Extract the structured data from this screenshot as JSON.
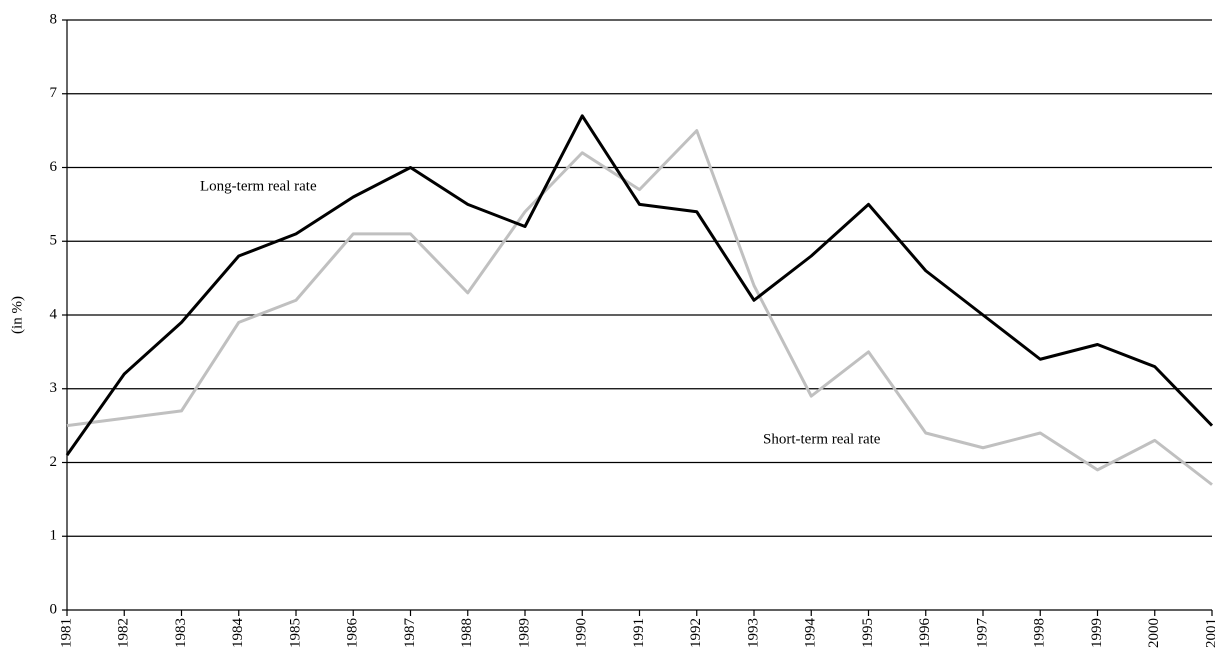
{
  "chart_data": {
    "type": "line",
    "y_label": "(in %)",
    "categories": [
      "1981",
      "1982",
      "1983",
      "1984",
      "1985",
      "1986",
      "1987",
      "1988",
      "1989",
      "1990",
      "1991",
      "1992",
      "1993",
      "1994",
      "1995",
      "1996",
      "1997",
      "1998",
      "1999",
      "2000",
      "2001"
    ],
    "series": [
      {
        "name": "Long-term real rate",
        "color": "#000000",
        "values": [
          2.1,
          3.2,
          3.9,
          4.8,
          5.1,
          5.6,
          6.0,
          5.5,
          5.2,
          6.7,
          5.5,
          5.4,
          4.2,
          4.8,
          5.5,
          4.6,
          4.0,
          3.4,
          3.6,
          3.3,
          2.5
        ]
      },
      {
        "name": "Short-term real rate",
        "color": "#c0c0c0",
        "values": [
          2.5,
          2.6,
          2.7,
          3.9,
          4.2,
          5.1,
          5.1,
          4.3,
          5.4,
          6.2,
          5.7,
          6.5,
          4.4,
          2.9,
          3.5,
          2.4,
          2.2,
          2.4,
          1.9,
          2.3,
          1.7
        ]
      }
    ],
    "ylim": [
      0,
      8
    ],
    "yticks": [
      0,
      1,
      2,
      3,
      4,
      5,
      6,
      7,
      8
    ],
    "grid": true
  }
}
